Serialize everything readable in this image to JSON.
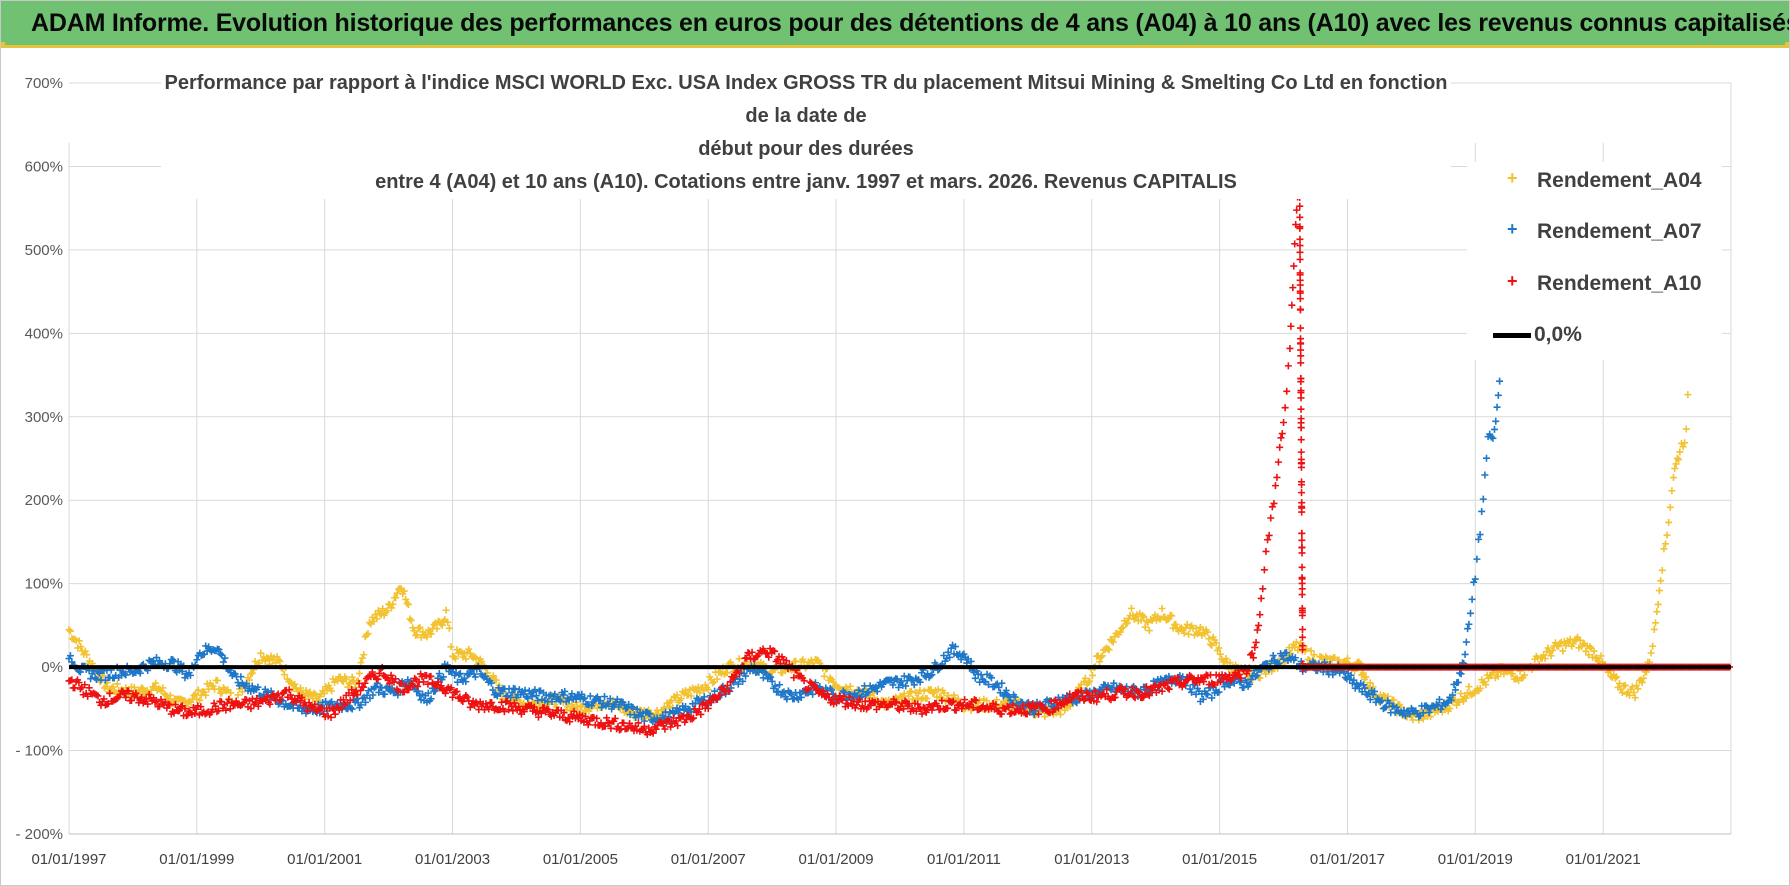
{
  "header": {
    "title": "ADAM Informe. Evolution historique des performances en euros pour des détentions de 4 ans (A04) à 10 ans (A10) avec les revenus connus capitalisés"
  },
  "colors": {
    "a04": "#f2c230",
    "a07": "#1f77c8",
    "a10": "#ee1111",
    "zero": "#000000",
    "banner": "#70c171",
    "banner_border": "#e7c33c",
    "grid": "#d9d9d9"
  },
  "chart_data": {
    "type": "scatter",
    "title_lines": [
      "Performance par rapport à l'indice MSCI WORLD Exc. USA Index GROSS TR  du placement Mitsui Mining & Smelting Co Ltd en fonction de la date de",
      "début pour des durées",
      "entre 4 (A04) et 10 ans (A10).  Cotations entre janv. 1997 et mars. 2026.  Revenus CAPITALIS"
    ],
    "x_range": [
      1997.0,
      2023.0
    ],
    "ylim": [
      -200,
      700
    ],
    "y_ticks": [
      700,
      600,
      500,
      400,
      300,
      200,
      100,
      0,
      -100,
      -200
    ],
    "y_tick_labels": [
      "700%",
      "600%",
      "500%",
      "400%",
      "300%",
      "200%",
      "100%",
      "0%",
      "- 100%",
      "- 200%"
    ],
    "x_ticks": [
      1997,
      1999,
      2001,
      2003,
      2005,
      2007,
      2009,
      2011,
      2013,
      2015,
      2017,
      2019,
      2021
    ],
    "x_tick_labels": [
      "01/01/1997",
      "01/01/1999",
      "01/01/2001",
      "01/01/2003",
      "01/01/2005",
      "01/01/2007",
      "01/01/2009",
      "01/01/2011",
      "01/01/2013",
      "01/01/2015",
      "01/01/2017",
      "01/01/2019",
      "01/01/2021"
    ],
    "legend": [
      {
        "key": "a04",
        "label": "Rendement_A04",
        "marker": "+"
      },
      {
        "key": "a07",
        "label": "Rendement_A07",
        "marker": "+"
      },
      {
        "key": "a10",
        "label": "Rendement_A10",
        "marker": "+"
      },
      {
        "key": "zero",
        "label": "0,0%",
        "marker": "line"
      }
    ],
    "series": [
      {
        "name": "Rendement_A04",
        "key": "a04",
        "points": [
          [
            1997.0,
            45
          ],
          [
            1997.3,
            10
          ],
          [
            1997.6,
            -25
          ],
          [
            1998.0,
            -30
          ],
          [
            1998.4,
            -25
          ],
          [
            1998.7,
            -45
          ],
          [
            1999.0,
            -35
          ],
          [
            1999.3,
            -20
          ],
          [
            1999.6,
            -40
          ],
          [
            2000.0,
            15
          ],
          [
            2000.3,
            5
          ],
          [
            2000.6,
            -30
          ],
          [
            2000.9,
            -40
          ],
          [
            2001.2,
            -15
          ],
          [
            2001.5,
            -20
          ],
          [
            2001.7,
            55
          ],
          [
            2002.0,
            70
          ],
          [
            2002.2,
            100
          ],
          [
            2002.4,
            45
          ],
          [
            2002.6,
            40
          ],
          [
            2002.8,
            50
          ],
          [
            2002.9,
            65
          ],
          [
            2003.0,
            15
          ],
          [
            2003.3,
            15
          ],
          [
            2003.5,
            0
          ],
          [
            2003.8,
            -35
          ],
          [
            2004.2,
            -45
          ],
          [
            2004.6,
            -40
          ],
          [
            2005.0,
            -50
          ],
          [
            2005.4,
            -40
          ],
          [
            2005.8,
            -55
          ],
          [
            2006.2,
            -55
          ],
          [
            2006.6,
            -35
          ],
          [
            2007.0,
            -20
          ],
          [
            2007.3,
            0
          ],
          [
            2007.6,
            5
          ],
          [
            2008.0,
            -5
          ],
          [
            2008.3,
            0
          ],
          [
            2008.7,
            5
          ],
          [
            2009.0,
            -20
          ],
          [
            2009.4,
            -30
          ],
          [
            2009.8,
            -45
          ],
          [
            2010.2,
            -35
          ],
          [
            2010.6,
            -30
          ],
          [
            2011.0,
            -45
          ],
          [
            2011.4,
            -45
          ],
          [
            2011.8,
            -45
          ],
          [
            2012.2,
            -55
          ],
          [
            2012.6,
            -50
          ],
          [
            2012.9,
            -20
          ],
          [
            2013.1,
            10
          ],
          [
            2013.4,
            40
          ],
          [
            2013.6,
            65
          ],
          [
            2013.9,
            50
          ],
          [
            2014.1,
            65
          ],
          [
            2014.4,
            45
          ],
          [
            2014.7,
            45
          ],
          [
            2014.9,
            30
          ],
          [
            2015.1,
            5
          ],
          [
            2015.4,
            -10
          ],
          [
            2015.7,
            -5
          ],
          [
            2016.0,
            10
          ],
          [
            2016.2,
            25
          ],
          [
            2016.5,
            10
          ],
          [
            2016.8,
            5
          ],
          [
            2017.0,
            5
          ],
          [
            2017.2,
            0
          ],
          [
            2017.4,
            -30
          ],
          [
            2017.7,
            -45
          ],
          [
            2018.0,
            -60
          ],
          [
            2018.3,
            -55
          ],
          [
            2018.6,
            -45
          ],
          [
            2018.9,
            -30
          ],
          [
            2019.1,
            -20
          ],
          [
            2019.4,
            -5
          ],
          [
            2019.7,
            -10
          ],
          [
            2020.0,
            10
          ],
          [
            2020.3,
            25
          ],
          [
            2020.6,
            30
          ],
          [
            2020.9,
            15
          ],
          [
            2021.1,
            -10
          ],
          [
            2021.3,
            -25
          ],
          [
            2021.5,
            -30
          ],
          [
            2021.7,
            0
          ],
          [
            2021.8,
            40
          ],
          [
            2021.9,
            110
          ],
          [
            2022.0,
            160
          ],
          [
            2022.1,
            230
          ],
          [
            2022.2,
            260
          ],
          [
            2022.3,
            280
          ],
          [
            2022.35,
            360
          ]
        ]
      },
      {
        "name": "Rendement_A07",
        "key": "a07",
        "points": [
          [
            1997.0,
            15
          ],
          [
            1997.2,
            -5
          ],
          [
            1997.5,
            -10
          ],
          [
            1997.8,
            -5
          ],
          [
            1998.0,
            -5
          ],
          [
            1998.3,
            5
          ],
          [
            1998.6,
            5
          ],
          [
            1998.9,
            -10
          ],
          [
            1999.0,
            15
          ],
          [
            1999.3,
            25
          ],
          [
            1999.6,
            -15
          ],
          [
            2000.0,
            -30
          ],
          [
            2000.3,
            -40
          ],
          [
            2000.6,
            -50
          ],
          [
            2000.9,
            -50
          ],
          [
            2001.2,
            -45
          ],
          [
            2001.5,
            -45
          ],
          [
            2001.8,
            -25
          ],
          [
            2002.1,
            -30
          ],
          [
            2002.3,
            -15
          ],
          [
            2002.6,
            -40
          ],
          [
            2002.9,
            0
          ],
          [
            2003.1,
            -15
          ],
          [
            2003.4,
            -5
          ],
          [
            2003.7,
            -30
          ],
          [
            2004.0,
            -30
          ],
          [
            2004.4,
            -35
          ],
          [
            2004.8,
            -35
          ],
          [
            2005.2,
            -40
          ],
          [
            2005.6,
            -45
          ],
          [
            2006.0,
            -60
          ],
          [
            2006.4,
            -60
          ],
          [
            2006.8,
            -45
          ],
          [
            2007.1,
            -35
          ],
          [
            2007.4,
            -20
          ],
          [
            2007.7,
            0
          ],
          [
            2008.0,
            -20
          ],
          [
            2008.3,
            -35
          ],
          [
            2008.7,
            -25
          ],
          [
            2009.0,
            -35
          ],
          [
            2009.4,
            -30
          ],
          [
            2009.8,
            -20
          ],
          [
            2010.2,
            -15
          ],
          [
            2010.5,
            -5
          ],
          [
            2010.8,
            20
          ],
          [
            2011.0,
            15
          ],
          [
            2011.2,
            -10
          ],
          [
            2011.5,
            -20
          ],
          [
            2011.8,
            -40
          ],
          [
            2012.1,
            -50
          ],
          [
            2012.5,
            -40
          ],
          [
            2012.9,
            -35
          ],
          [
            2013.3,
            -25
          ],
          [
            2013.7,
            -30
          ],
          [
            2014.1,
            -20
          ],
          [
            2014.4,
            -10
          ],
          [
            2014.7,
            -35
          ],
          [
            2014.9,
            -30
          ],
          [
            2015.1,
            -15
          ],
          [
            2015.4,
            -20
          ],
          [
            2015.7,
            0
          ],
          [
            2016.0,
            15
          ],
          [
            2016.3,
            0
          ],
          [
            2016.6,
            0
          ],
          [
            2016.9,
            -5
          ],
          [
            2017.1,
            -20
          ],
          [
            2017.4,
            -35
          ],
          [
            2017.7,
            -50
          ],
          [
            2018.0,
            -55
          ],
          [
            2018.3,
            -50
          ],
          [
            2018.6,
            -40
          ],
          [
            2018.8,
            0
          ],
          [
            2018.9,
            50
          ],
          [
            2019.0,
            110
          ],
          [
            2019.05,
            150
          ],
          [
            2019.1,
            180
          ],
          [
            2019.15,
            230
          ],
          [
            2019.2,
            270
          ],
          [
            2019.3,
            280
          ],
          [
            2019.4,
            355
          ]
        ]
      },
      {
        "name": "Rendement_A10",
        "key": "a10",
        "points": [
          [
            1997.0,
            -15
          ],
          [
            1997.2,
            -25
          ],
          [
            1997.5,
            -40
          ],
          [
            1997.8,
            -35
          ],
          [
            1998.0,
            -35
          ],
          [
            1998.3,
            -40
          ],
          [
            1998.6,
            -50
          ],
          [
            1998.9,
            -55
          ],
          [
            1999.2,
            -50
          ],
          [
            1999.5,
            -45
          ],
          [
            1999.8,
            -45
          ],
          [
            2000.1,
            -40
          ],
          [
            2000.4,
            -30
          ],
          [
            2000.8,
            -50
          ],
          [
            2001.1,
            -55
          ],
          [
            2001.4,
            -35
          ],
          [
            2001.7,
            -15
          ],
          [
            2001.9,
            -5
          ],
          [
            2002.2,
            -25
          ],
          [
            2002.5,
            -15
          ],
          [
            2002.8,
            -20
          ],
          [
            2003.0,
            -30
          ],
          [
            2003.3,
            -45
          ],
          [
            2003.7,
            -45
          ],
          [
            2004.1,
            -50
          ],
          [
            2004.5,
            -55
          ],
          [
            2004.9,
            -60
          ],
          [
            2005.3,
            -65
          ],
          [
            2005.7,
            -70
          ],
          [
            2006.0,
            -75
          ],
          [
            2006.3,
            -70
          ],
          [
            2006.7,
            -60
          ],
          [
            2007.0,
            -45
          ],
          [
            2007.3,
            -25
          ],
          [
            2007.6,
            10
          ],
          [
            2007.9,
            20
          ],
          [
            2008.2,
            5
          ],
          [
            2008.5,
            -20
          ],
          [
            2008.8,
            -35
          ],
          [
            2009.1,
            -40
          ],
          [
            2009.5,
            -45
          ],
          [
            2009.9,
            -45
          ],
          [
            2010.3,
            -50
          ],
          [
            2010.7,
            -45
          ],
          [
            2011.1,
            -45
          ],
          [
            2011.5,
            -50
          ],
          [
            2011.9,
            -50
          ],
          [
            2012.3,
            -50
          ],
          [
            2012.7,
            -35
          ],
          [
            2013.1,
            -35
          ],
          [
            2013.5,
            -30
          ],
          [
            2013.9,
            -30
          ],
          [
            2014.3,
            -20
          ],
          [
            2014.6,
            -15
          ],
          [
            2014.9,
            -15
          ],
          [
            2015.2,
            -10
          ],
          [
            2015.4,
            -5
          ],
          [
            2015.55,
            20
          ],
          [
            2015.65,
            80
          ],
          [
            2015.75,
            150
          ],
          [
            2015.85,
            200
          ],
          [
            2015.92,
            250
          ],
          [
            2016.0,
            290
          ],
          [
            2016.05,
            330
          ],
          [
            2016.1,
            380
          ],
          [
            2016.13,
            430
          ],
          [
            2016.16,
            480
          ],
          [
            2016.19,
            530
          ],
          [
            2016.22,
            570
          ],
          [
            2016.25,
            590
          ],
          [
            2016.3,
            0
          ],
          [
            2017.0,
            0
          ],
          [
            2018.0,
            0
          ],
          [
            2019.0,
            0
          ],
          [
            2020.0,
            0
          ],
          [
            2021.0,
            0
          ],
          [
            2022.0,
            0
          ],
          [
            2023.0,
            0
          ]
        ]
      }
    ],
    "zero_line": 0
  }
}
